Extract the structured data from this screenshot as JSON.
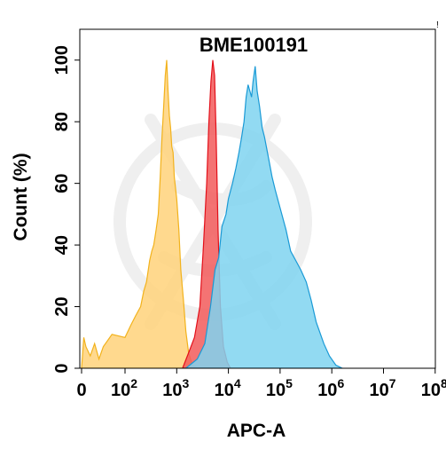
{
  "chart_data": {
    "type": "area",
    "title": "BME100191",
    "xlabel": "APC-A",
    "ylabel": "Count (%)",
    "x_scale": "biexponential",
    "xlim": [
      0,
      100000000
    ],
    "ylim": [
      0,
      110
    ],
    "x_ticks": [
      {
        "value": 0,
        "base": "0",
        "exp": ""
      },
      {
        "value": 100,
        "base": "10",
        "exp": "2"
      },
      {
        "value": 1000,
        "base": "10",
        "exp": "3"
      },
      {
        "value": 10000,
        "base": "10",
        "exp": "4"
      },
      {
        "value": 100000,
        "base": "10",
        "exp": "5"
      },
      {
        "value": 1000000,
        "base": "10",
        "exp": "6"
      },
      {
        "value": 10000000,
        "base": "10",
        "exp": "7"
      },
      {
        "value": 100000000,
        "base": "10",
        "exp": "8"
      }
    ],
    "y_ticks": [
      "0",
      "20",
      "40",
      "60",
      "80",
      "100"
    ],
    "series": [
      {
        "color": "#ffd27a",
        "stroke": "#f2b21c",
        "points": [
          [
            0,
            0
          ],
          [
            5,
            10
          ],
          [
            10,
            7
          ],
          [
            20,
            4
          ],
          [
            30,
            8
          ],
          [
            40,
            3
          ],
          [
            50,
            7
          ],
          [
            70,
            11
          ],
          [
            100,
            10
          ],
          [
            130,
            14
          ],
          [
            160,
            17
          ],
          [
            200,
            20
          ],
          [
            230,
            25
          ],
          [
            260,
            28
          ],
          [
            300,
            35
          ],
          [
            330,
            38
          ],
          [
            360,
            40
          ],
          [
            400,
            45
          ],
          [
            440,
            50
          ],
          [
            480,
            62
          ],
          [
            520,
            75
          ],
          [
            560,
            85
          ],
          [
            600,
            95
          ],
          [
            640,
            100
          ],
          [
            680,
            90
          ],
          [
            720,
            82
          ],
          [
            760,
            78
          ],
          [
            800,
            72
          ],
          [
            850,
            70
          ],
          [
            900,
            62
          ],
          [
            1000,
            55
          ],
          [
            1100,
            45
          ],
          [
            1200,
            32
          ],
          [
            1350,
            22
          ],
          [
            1500,
            12
          ],
          [
            1700,
            5
          ],
          [
            2000,
            1
          ],
          [
            2500,
            0
          ]
        ]
      },
      {
        "color": "#f25a5a",
        "stroke": "#e3101a",
        "points": [
          [
            1300,
            0
          ],
          [
            1700,
            5
          ],
          [
            2200,
            10
          ],
          [
            2800,
            20
          ],
          [
            3300,
            40
          ],
          [
            3800,
            60
          ],
          [
            4200,
            80
          ],
          [
            4600,
            93
          ],
          [
            5000,
            100
          ],
          [
            5400,
            95
          ],
          [
            5800,
            75
          ],
          [
            6300,
            45
          ],
          [
            7000,
            20
          ],
          [
            8000,
            7
          ],
          [
            9500,
            2
          ],
          [
            11000,
            0
          ]
        ]
      },
      {
        "color": "#7fd3f0",
        "stroke": "#1a9ad6",
        "points": [
          [
            1500,
            0
          ],
          [
            2500,
            3
          ],
          [
            3500,
            8
          ],
          [
            4500,
            20
          ],
          [
            5500,
            32
          ],
          [
            6500,
            36
          ],
          [
            7500,
            46
          ],
          [
            9000,
            50
          ],
          [
            10000,
            55
          ],
          [
            12000,
            60
          ],
          [
            14000,
            65
          ],
          [
            16000,
            70
          ],
          [
            18000,
            75
          ],
          [
            20000,
            80
          ],
          [
            22000,
            88
          ],
          [
            24000,
            92
          ],
          [
            26000,
            90
          ],
          [
            28000,
            88
          ],
          [
            30000,
            93
          ],
          [
            33000,
            98
          ],
          [
            36000,
            90
          ],
          [
            40000,
            85
          ],
          [
            45000,
            78
          ],
          [
            50000,
            75
          ],
          [
            60000,
            68
          ],
          [
            70000,
            62
          ],
          [
            80000,
            58
          ],
          [
            100000,
            52
          ],
          [
            130000,
            45
          ],
          [
            160000,
            38
          ],
          [
            200000,
            35
          ],
          [
            250000,
            32
          ],
          [
            320000,
            28
          ],
          [
            400000,
            22
          ],
          [
            500000,
            15
          ],
          [
            700000,
            8
          ],
          [
            900000,
            4
          ],
          [
            1200000,
            1
          ],
          [
            1600000,
            0
          ]
        ]
      }
    ],
    "grid": false
  },
  "corner_mark": "!"
}
